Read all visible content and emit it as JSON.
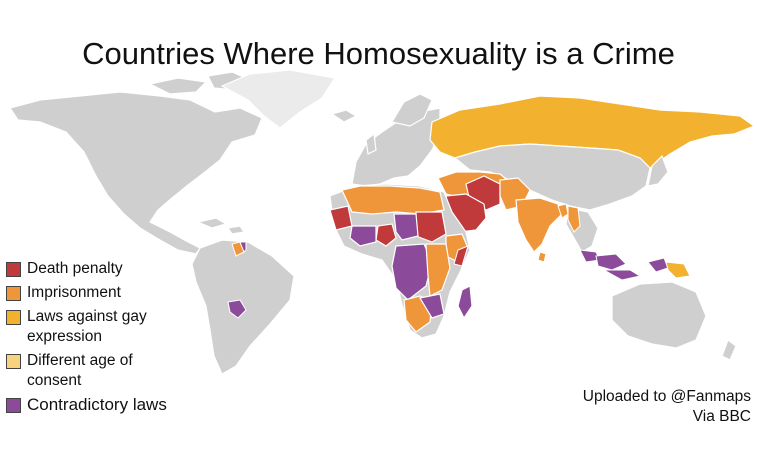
{
  "title": "Countries Where Homosexuality is a Crime",
  "legend": [
    {
      "label": "Death penalty",
      "color": "#c0393b"
    },
    {
      "label": "Imprisonment",
      "color": "#f0963a"
    },
    {
      "label": "Laws against gay\nexpression",
      "color": "#f2b12e"
    },
    {
      "label": "Different age of\nconsent",
      "color": "#f7d27f"
    },
    {
      "label": "Contradictory laws",
      "color": "#8b4a9a"
    }
  ],
  "credit": {
    "line1": "Uploaded to @Fanmaps",
    "line2": "Via BBC"
  },
  "colors": {
    "land": "#cfcfcf",
    "greenland": "#ebebeb",
    "death_penalty": "#c0393b",
    "imprisonment": "#f0963a",
    "gay_expression": "#f2b12e",
    "contradictory": "#8b4a9a"
  }
}
